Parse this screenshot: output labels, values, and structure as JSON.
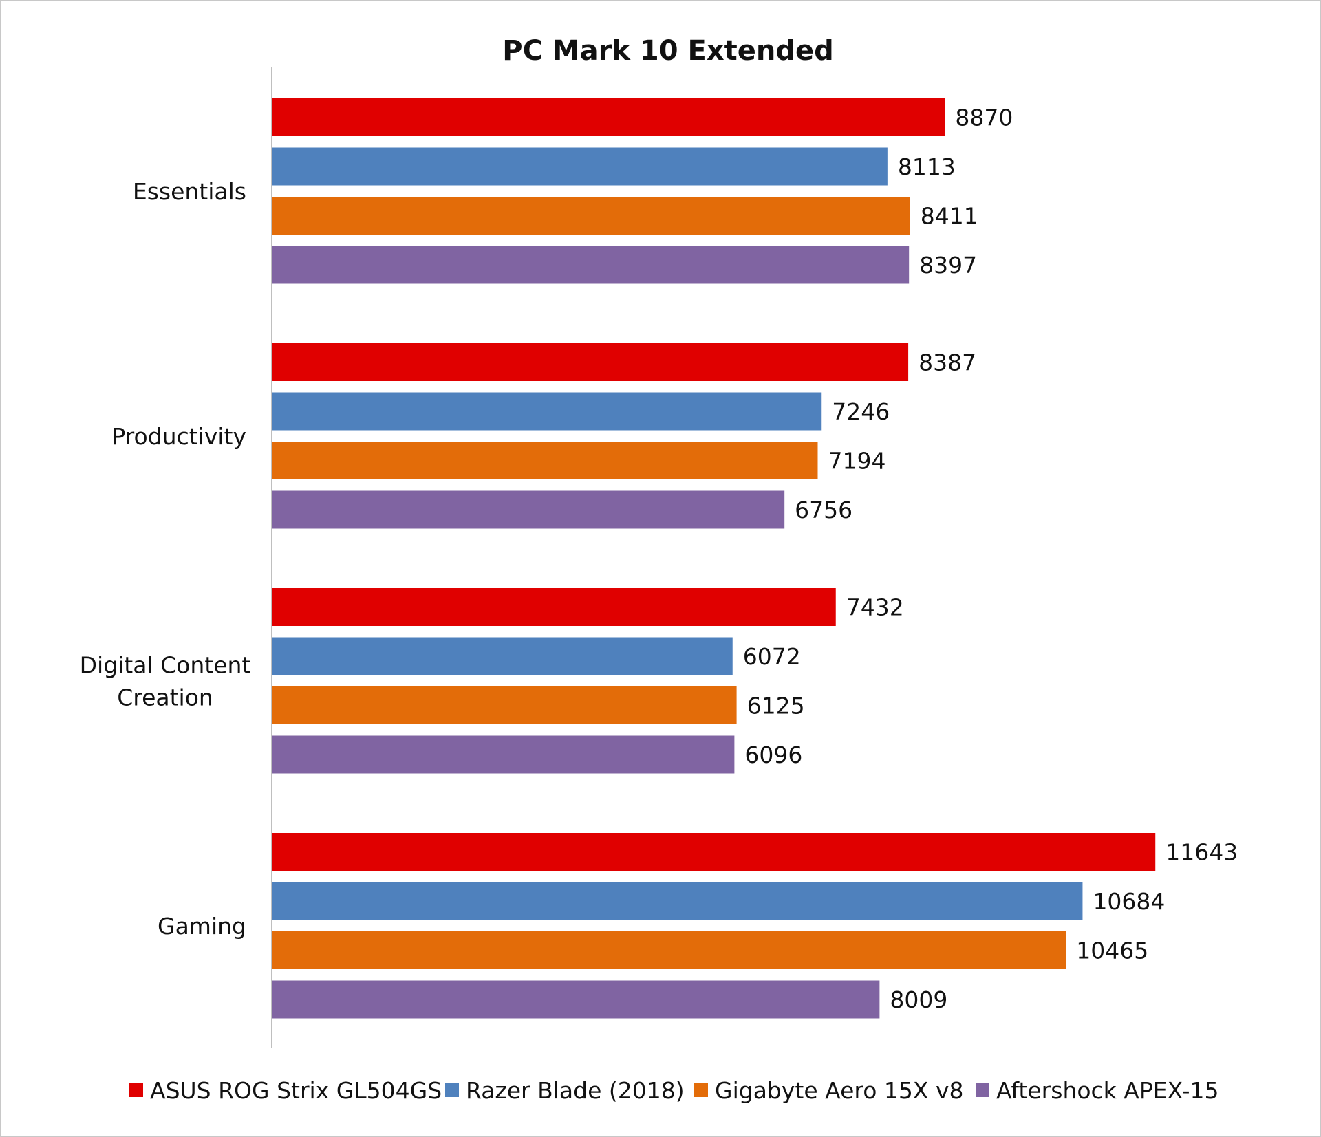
{
  "chart_data": {
    "type": "bar",
    "orientation": "horizontal",
    "title": "PC Mark 10 Extended",
    "categories": [
      [
        "Essentials"
      ],
      [
        "Productivity"
      ],
      [
        "Digital Content",
        "Creation"
      ],
      [
        "Gaming"
      ]
    ],
    "series": [
      {
        "name": "ASUS ROG Strix GL504GS",
        "color": "#e00000",
        "values": [
          8870,
          8387,
          7432,
          11643
        ]
      },
      {
        "name": "Razer Blade (2018)",
        "color": "#4f81bd",
        "values": [
          8113,
          7246,
          6072,
          10684
        ]
      },
      {
        "name": "Gigabyte Aero 15X v8",
        "color": "#e36c09",
        "values": [
          8411,
          7194,
          6125,
          10465
        ]
      },
      {
        "name": "Aftershock APEX-15",
        "color": "#8064a2",
        "values": [
          8397,
          6756,
          6096,
          8009
        ]
      }
    ],
    "xlim": [
      0,
      12000
    ],
    "grid": false,
    "legend": "bottom"
  }
}
